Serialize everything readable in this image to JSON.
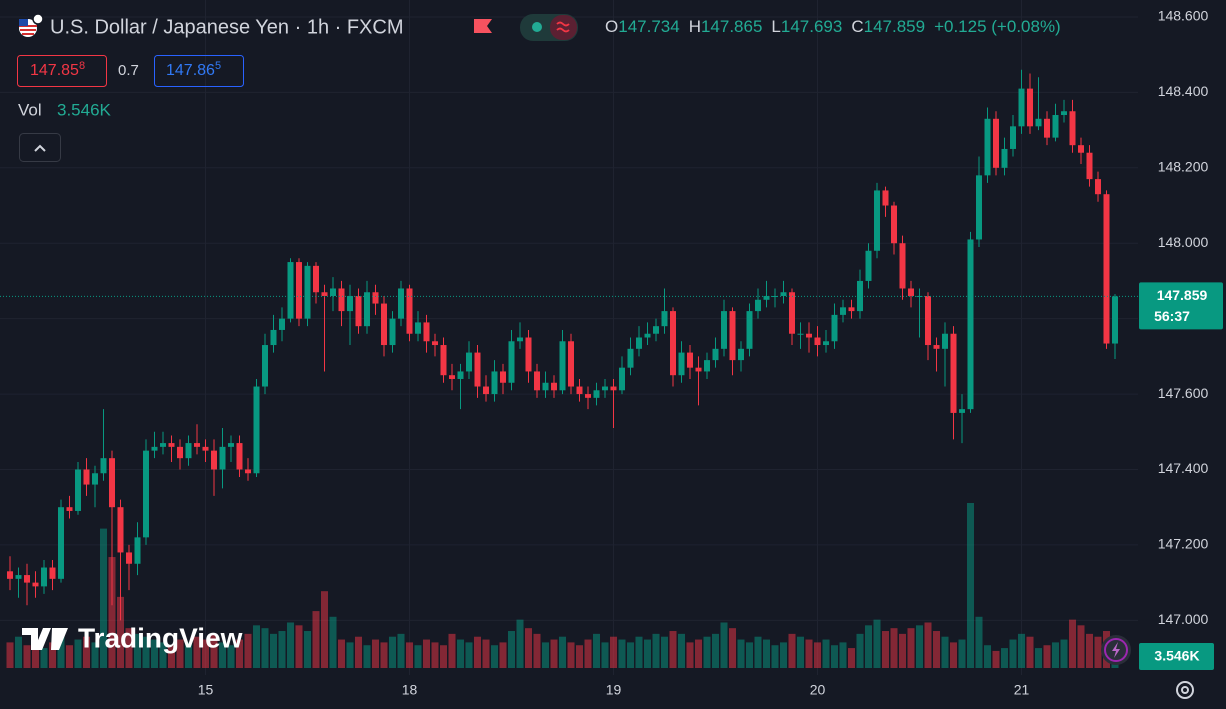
{
  "header": {
    "symbol": "U.S. Dollar / Japanese Yen · 1h · FXCM",
    "ohlc": [
      {
        "key": "O",
        "value": "147.734"
      },
      {
        "key": "H",
        "value": "147.865"
      },
      {
        "key": "L",
        "value": "147.693"
      },
      {
        "key": "C",
        "value": "147.859"
      }
    ],
    "change": "+0.125 (+0.08%)",
    "bid": {
      "price": "147.85",
      "pip": "8"
    },
    "spread": "0.7",
    "ask": {
      "price": "147.86",
      "pip": "5"
    },
    "logo": "TradingView"
  },
  "chart_data": {
    "type": "candlestick",
    "up_color": "#089981",
    "down_color": "#f23645",
    "grid": true,
    "ylim": [
      146.855,
      148.645
    ],
    "yticks": [
      {
        "value": 147.0,
        "label": "147.000"
      },
      {
        "value": 147.2,
        "label": "147.200"
      },
      {
        "value": 147.4,
        "label": "147.400"
      },
      {
        "value": 147.6,
        "label": "147.600"
      },
      {
        "value": 147.8,
        "label": "147.800"
      },
      {
        "value": 148.0,
        "label": "148.000"
      },
      {
        "value": 148.2,
        "label": "148.200"
      },
      {
        "value": 148.4,
        "label": "148.400"
      },
      {
        "value": 148.6,
        "label": "148.600"
      }
    ],
    "xticks": [
      {
        "value": 23,
        "label": "15"
      },
      {
        "value": 47,
        "label": "18"
      },
      {
        "value": 71,
        "label": "19"
      },
      {
        "value": 95,
        "label": "20"
      },
      {
        "value": 119,
        "label": "21"
      }
    ],
    "countdown": "56:37",
    "candles": [
      [
        147.13,
        147.17,
        147.08,
        147.11
      ],
      [
        147.11,
        147.14,
        147.06,
        147.12
      ],
      [
        147.12,
        147.15,
        147.04,
        147.1
      ],
      [
        147.1,
        147.13,
        147.06,
        147.09
      ],
      [
        147.09,
        147.16,
        147.07,
        147.14
      ],
      [
        147.14,
        147.16,
        147.08,
        147.11
      ],
      [
        147.11,
        147.32,
        147.1,
        147.3
      ],
      [
        147.3,
        147.33,
        147.27,
        147.29
      ],
      [
        147.29,
        147.42,
        147.28,
        147.4
      ],
      [
        147.4,
        147.43,
        147.33,
        147.36
      ],
      [
        147.36,
        147.41,
        147.3,
        147.39
      ],
      [
        147.39,
        147.56,
        147.37,
        147.43
      ],
      [
        147.43,
        147.45,
        147.04,
        147.3
      ],
      [
        147.3,
        147.32,
        147.0,
        147.18
      ],
      [
        147.18,
        147.2,
        147.08,
        147.15
      ],
      [
        147.15,
        147.26,
        147.12,
        147.22
      ],
      [
        147.22,
        147.48,
        147.2,
        147.45
      ],
      [
        147.45,
        147.5,
        147.43,
        147.46
      ],
      [
        147.46,
        147.5,
        147.44,
        147.47
      ],
      [
        147.47,
        147.49,
        147.42,
        147.46
      ],
      [
        147.46,
        147.48,
        147.4,
        147.43
      ],
      [
        147.43,
        147.49,
        147.41,
        147.47
      ],
      [
        147.47,
        147.52,
        147.44,
        147.46
      ],
      [
        147.46,
        147.48,
        147.42,
        147.45
      ],
      [
        147.45,
        147.48,
        147.33,
        147.4
      ],
      [
        147.4,
        147.51,
        147.35,
        147.46
      ],
      [
        147.46,
        147.49,
        147.42,
        147.47
      ],
      [
        147.47,
        147.49,
        147.38,
        147.4
      ],
      [
        147.4,
        147.43,
        147.37,
        147.39
      ],
      [
        147.39,
        147.64,
        147.38,
        147.62
      ],
      [
        147.62,
        147.76,
        147.6,
        147.73
      ],
      [
        147.73,
        147.81,
        147.71,
        147.77
      ],
      [
        147.77,
        147.83,
        147.74,
        147.8
      ],
      [
        147.8,
        147.96,
        147.79,
        147.95
      ],
      [
        147.95,
        147.96,
        147.78,
        147.8
      ],
      [
        147.8,
        147.95,
        147.78,
        147.94
      ],
      [
        147.94,
        147.95,
        147.84,
        147.87
      ],
      [
        147.87,
        147.89,
        147.66,
        147.86
      ],
      [
        147.86,
        147.91,
        147.82,
        147.88
      ],
      [
        147.88,
        147.9,
        147.78,
        147.82
      ],
      [
        147.82,
        147.89,
        147.73,
        147.86
      ],
      [
        147.86,
        147.88,
        147.76,
        147.78
      ],
      [
        147.78,
        147.9,
        147.76,
        147.87
      ],
      [
        147.87,
        147.89,
        147.81,
        147.84
      ],
      [
        147.84,
        147.86,
        147.7,
        147.73
      ],
      [
        147.73,
        147.82,
        147.71,
        147.8
      ],
      [
        147.8,
        147.9,
        147.78,
        147.88
      ],
      [
        147.88,
        147.89,
        147.74,
        147.76
      ],
      [
        147.76,
        147.82,
        147.74,
        147.79
      ],
      [
        147.79,
        147.81,
        147.71,
        147.74
      ],
      [
        147.74,
        147.76,
        147.7,
        147.73
      ],
      [
        147.73,
        147.75,
        147.63,
        147.65
      ],
      [
        147.65,
        147.68,
        147.61,
        147.64
      ],
      [
        147.64,
        147.68,
        147.56,
        147.66
      ],
      [
        147.66,
        147.74,
        147.64,
        147.71
      ],
      [
        147.71,
        147.73,
        147.59,
        147.62
      ],
      [
        147.62,
        147.65,
        147.58,
        147.6
      ],
      [
        147.6,
        147.69,
        147.58,
        147.66
      ],
      [
        147.66,
        147.68,
        147.6,
        147.63
      ],
      [
        147.63,
        147.77,
        147.61,
        147.74
      ],
      [
        147.74,
        147.79,
        147.72,
        147.75
      ],
      [
        147.75,
        147.77,
        147.63,
        147.66
      ],
      [
        147.66,
        147.68,
        147.59,
        147.61
      ],
      [
        147.61,
        147.66,
        147.59,
        147.63
      ],
      [
        147.63,
        147.65,
        147.59,
        147.61
      ],
      [
        147.61,
        147.77,
        147.6,
        147.74
      ],
      [
        147.74,
        147.76,
        147.6,
        147.62
      ],
      [
        147.62,
        147.64,
        147.58,
        147.6
      ],
      [
        147.6,
        147.62,
        147.56,
        147.59
      ],
      [
        147.59,
        147.63,
        147.57,
        147.61
      ],
      [
        147.61,
        147.64,
        147.59,
        147.62
      ],
      [
        147.62,
        147.64,
        147.51,
        147.61
      ],
      [
        147.61,
        147.7,
        147.6,
        147.67
      ],
      [
        147.67,
        147.75,
        147.65,
        147.72
      ],
      [
        147.72,
        147.78,
        147.7,
        147.75
      ],
      [
        147.75,
        147.79,
        147.73,
        147.76
      ],
      [
        147.76,
        147.8,
        147.74,
        147.78
      ],
      [
        147.78,
        147.88,
        147.76,
        147.82
      ],
      [
        147.82,
        147.83,
        147.62,
        147.65
      ],
      [
        147.65,
        147.74,
        147.63,
        147.71
      ],
      [
        147.71,
        147.73,
        147.64,
        147.67
      ],
      [
        147.67,
        147.7,
        147.57,
        147.66
      ],
      [
        147.66,
        147.71,
        147.64,
        147.69
      ],
      [
        147.69,
        147.75,
        147.67,
        147.72
      ],
      [
        147.72,
        147.85,
        147.7,
        147.82
      ],
      [
        147.82,
        147.83,
        147.65,
        147.69
      ],
      [
        147.69,
        147.74,
        147.66,
        147.72
      ],
      [
        147.72,
        147.84,
        147.7,
        147.82
      ],
      [
        147.82,
        147.88,
        147.8,
        147.85
      ],
      [
        147.85,
        147.9,
        147.83,
        147.86
      ],
      [
        147.86,
        147.88,
        147.83,
        147.86
      ],
      [
        147.86,
        147.9,
        147.84,
        147.87
      ],
      [
        147.87,
        147.88,
        147.73,
        147.76
      ],
      [
        147.76,
        147.79,
        147.72,
        147.76
      ],
      [
        147.76,
        147.79,
        147.71,
        147.75
      ],
      [
        147.75,
        147.78,
        147.7,
        147.73
      ],
      [
        147.73,
        147.77,
        147.71,
        147.74
      ],
      [
        147.74,
        147.84,
        147.72,
        147.81
      ],
      [
        147.81,
        147.85,
        147.79,
        147.83
      ],
      [
        147.83,
        147.85,
        147.8,
        147.82
      ],
      [
        147.82,
        147.93,
        147.8,
        147.9
      ],
      [
        147.9,
        148.0,
        147.88,
        147.98
      ],
      [
        147.98,
        148.16,
        147.96,
        148.14
      ],
      [
        148.14,
        148.15,
        148.07,
        148.1
      ],
      [
        148.1,
        148.11,
        147.97,
        148.0
      ],
      [
        148.0,
        148.02,
        147.85,
        147.88
      ],
      [
        147.88,
        147.9,
        147.83,
        147.86
      ],
      [
        147.86,
        147.88,
        147.75,
        147.86
      ],
      [
        147.86,
        147.87,
        147.69,
        147.73
      ],
      [
        147.73,
        147.75,
        147.66,
        147.72
      ],
      [
        147.72,
        147.79,
        147.62,
        147.76
      ],
      [
        147.76,
        147.78,
        147.48,
        147.55
      ],
      [
        147.55,
        147.6,
        147.47,
        147.56
      ],
      [
        147.56,
        148.03,
        147.55,
        148.01
      ],
      [
        148.01,
        148.23,
        147.99,
        148.18
      ],
      [
        148.18,
        148.36,
        148.16,
        148.33
      ],
      [
        148.33,
        148.35,
        148.18,
        148.2
      ],
      [
        148.2,
        148.28,
        148.18,
        148.25
      ],
      [
        148.25,
        148.34,
        148.23,
        148.31
      ],
      [
        148.31,
        148.46,
        148.29,
        148.41
      ],
      [
        148.41,
        148.45,
        148.29,
        148.31
      ],
      [
        148.31,
        148.44,
        148.3,
        148.33
      ],
      [
        148.33,
        148.35,
        148.26,
        148.28
      ],
      [
        148.28,
        148.37,
        148.27,
        148.34
      ],
      [
        148.34,
        148.38,
        148.32,
        148.35
      ],
      [
        148.35,
        148.38,
        148.24,
        148.26
      ],
      [
        148.26,
        148.28,
        148.21,
        148.24
      ],
      [
        148.24,
        148.26,
        148.15,
        148.17
      ],
      [
        148.17,
        148.19,
        148.11,
        148.13
      ],
      [
        148.13,
        148.14,
        147.72,
        147.734
      ],
      [
        147.734,
        147.865,
        147.693,
        147.859
      ]
    ],
    "volume": {
      "label": "Vol",
      "current_label": "3.546K",
      "values": [
        9000,
        11000,
        8000,
        10000,
        7000,
        9000,
        12000,
        8000,
        10000,
        11000,
        9000,
        49000,
        39000,
        25000,
        14000,
        12000,
        11000,
        10000,
        9000,
        8000,
        10000,
        9000,
        11000,
        10000,
        12000,
        9000,
        8000,
        10000,
        12000,
        15000,
        14000,
        12000,
        13000,
        16000,
        15000,
        13000,
        20000,
        27000,
        18000,
        10000,
        9000,
        11000,
        8000,
        10000,
        9000,
        11000,
        12000,
        9000,
        8000,
        10000,
        9000,
        8000,
        12000,
        10000,
        9000,
        11000,
        10000,
        8000,
        9000,
        13000,
        17000,
        14000,
        12000,
        9000,
        10000,
        11000,
        9000,
        8000,
        10000,
        12000,
        9000,
        11000,
        10000,
        9000,
        11000,
        10000,
        12000,
        11000,
        13000,
        12000,
        9000,
        10000,
        11000,
        12000,
        16000,
        14000,
        10000,
        9000,
        11000,
        10000,
        8000,
        9000,
        12000,
        11000,
        10000,
        9000,
        10000,
        8000,
        9000,
        7000,
        12000,
        15000,
        17000,
        13000,
        14000,
        12000,
        14000,
        15000,
        16000,
        13000,
        11000,
        9000,
        10000,
        58000,
        18000,
        8000,
        6000,
        7000,
        10000,
        12000,
        11000,
        7000,
        8000,
        9000,
        10000,
        17000,
        15000,
        12000,
        11000,
        13000,
        3546
      ]
    }
  }
}
